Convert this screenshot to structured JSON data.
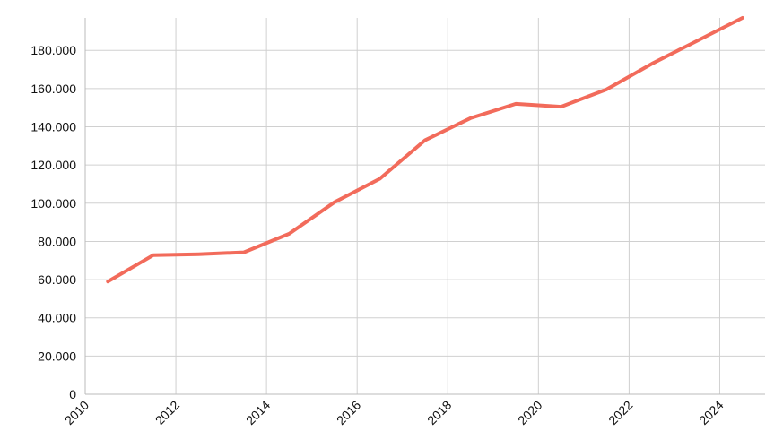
{
  "chart_data": {
    "type": "line",
    "title": "",
    "xlabel": "",
    "ylabel": "",
    "x_ticks": [
      "2010",
      "2012",
      "2014",
      "2016",
      "2018",
      "2020",
      "2022",
      "2024"
    ],
    "y_ticks": [
      "0",
      "20.000",
      "40.000",
      "60.000",
      "80.000",
      "100.000",
      "120.000",
      "140.000",
      "160.000",
      "180.000"
    ],
    "xlim": [
      2010,
      2025
    ],
    "ylim": [
      0,
      197000
    ],
    "grid": true,
    "legend": "none",
    "series": [
      {
        "color": "#f26b5b",
        "x": [
          2010.5,
          2011.5,
          2012.5,
          2013.5,
          2014.5,
          2015.5,
          2016.5,
          2017.5,
          2018.5,
          2019.5,
          2020.5,
          2021.5,
          2022.5,
          2023.5,
          2024.5
        ],
        "y": [
          59000,
          72800,
          73300,
          74300,
          84000,
          100500,
          112800,
          133000,
          144500,
          152000,
          150500,
          159500,
          173000,
          185000,
          197000
        ]
      }
    ]
  }
}
